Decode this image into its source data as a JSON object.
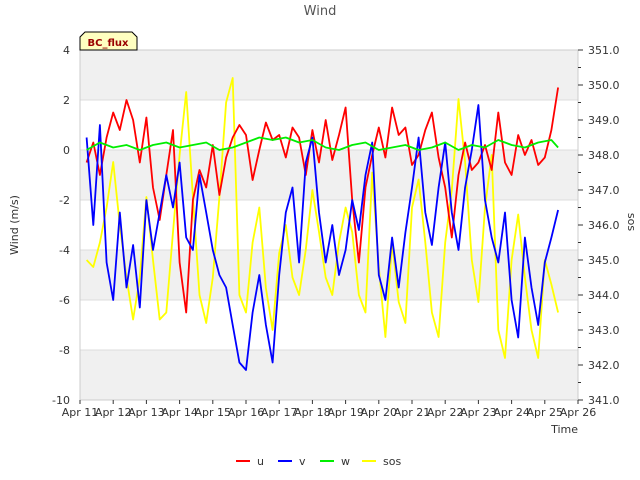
{
  "chart_data": {
    "type": "line",
    "title": "Wind",
    "xlabel": "Time",
    "ylabel_left": "Wind (m/s)",
    "ylabel_right": "sos",
    "xlim": [
      0,
      15
    ],
    "ylim_left": [
      -10,
      4
    ],
    "ylim_right": [
      341,
      351
    ],
    "x_tick_labels": [
      "Apr 11",
      "Apr 12",
      "Apr 13",
      "Apr 14",
      "Apr 15",
      "Apr 16",
      "Apr 17",
      "Apr 18",
      "Apr 19",
      "Apr 20",
      "Apr 21",
      "Apr 22",
      "Apr 23",
      "Apr 24",
      "Apr 25",
      "Apr 26"
    ],
    "y_ticks_left": [
      -10,
      -8,
      -6,
      -4,
      -2,
      0,
      2,
      4
    ],
    "y_ticks_right": [
      "341.0",
      "342.0",
      "343.0",
      "344.0",
      "345.0",
      "346.0",
      "347.0",
      "348.0",
      "349.0",
      "350.0",
      "351.0"
    ],
    "y_ticks_right_values": [
      341,
      342,
      343,
      344,
      345,
      346,
      347,
      348,
      349,
      350,
      351
    ],
    "station_label": "BC_flux",
    "grid": true,
    "legend_position": "bottom-center",
    "series": [
      {
        "name": "u",
        "axis": "left",
        "color": "#ff0000",
        "x": [
          0.2,
          0.4,
          0.6,
          0.8,
          1.0,
          1.2,
          1.4,
          1.6,
          1.8,
          2.0,
          2.2,
          2.4,
          2.6,
          2.8,
          3.0,
          3.2,
          3.4,
          3.6,
          3.8,
          4.0,
          4.2,
          4.4,
          4.6,
          4.8,
          5.0,
          5.2,
          5.4,
          5.6,
          5.8,
          6.0,
          6.2,
          6.4,
          6.6,
          6.8,
          7.0,
          7.2,
          7.4,
          7.6,
          7.8,
          8.0,
          8.2,
          8.4,
          8.6,
          8.8,
          9.0,
          9.2,
          9.4,
          9.6,
          9.8,
          10.0,
          10.2,
          10.4,
          10.6,
          10.8,
          11.0,
          11.2,
          11.4,
          11.6,
          11.8,
          12.0,
          12.2,
          12.4,
          12.6,
          12.8,
          13.0,
          13.2,
          13.4,
          13.6,
          13.8,
          14.0,
          14.2,
          14.4
        ],
        "y": [
          -0.5,
          0.3,
          -1.0,
          0.5,
          1.5,
          0.8,
          2.0,
          1.2,
          -0.5,
          1.3,
          -1.5,
          -2.8,
          -1.0,
          0.8,
          -4.5,
          -6.5,
          -2.0,
          -0.8,
          -1.5,
          0.2,
          -1.8,
          -0.3,
          0.5,
          1.0,
          0.6,
          -1.2,
          0.0,
          1.1,
          0.4,
          0.6,
          -0.3,
          0.9,
          0.5,
          -1.0,
          0.8,
          -0.5,
          1.2,
          -0.4,
          0.6,
          1.7,
          -2.0,
          -4.5,
          -1.5,
          -0.2,
          0.9,
          -0.3,
          1.7,
          0.6,
          0.9,
          -0.6,
          -0.2,
          0.8,
          1.5,
          -0.3,
          -1.5,
          -3.5,
          -1.0,
          0.3,
          -0.8,
          -0.5,
          0.2,
          -0.8,
          1.5,
          -0.5,
          -1.0,
          0.6,
          -0.2,
          0.4,
          -0.6,
          -0.3,
          0.8,
          2.5
        ]
      },
      {
        "name": "v",
        "axis": "left",
        "color": "#0000ff",
        "x": [
          0.2,
          0.4,
          0.6,
          0.8,
          1.0,
          1.2,
          1.4,
          1.6,
          1.8,
          2.0,
          2.2,
          2.4,
          2.6,
          2.8,
          3.0,
          3.2,
          3.4,
          3.6,
          3.8,
          4.0,
          4.2,
          4.4,
          4.6,
          4.8,
          5.0,
          5.2,
          5.4,
          5.6,
          5.8,
          6.0,
          6.2,
          6.4,
          6.6,
          6.8,
          7.0,
          7.2,
          7.4,
          7.6,
          7.8,
          8.0,
          8.2,
          8.4,
          8.6,
          8.8,
          9.0,
          9.2,
          9.4,
          9.6,
          9.8,
          10.0,
          10.2,
          10.4,
          10.6,
          10.8,
          11.0,
          11.2,
          11.4,
          11.6,
          11.8,
          12.0,
          12.2,
          12.4,
          12.6,
          12.8,
          13.0,
          13.2,
          13.4,
          13.6,
          13.8,
          14.0,
          14.2,
          14.4
        ],
        "y": [
          0.5,
          -3.0,
          1.0,
          -4.5,
          -6.0,
          -2.5,
          -5.5,
          -3.8,
          -6.3,
          -2.0,
          -4.0,
          -2.5,
          -1.0,
          -2.3,
          -0.5,
          -3.5,
          -4.0,
          -1.0,
          -2.5,
          -4.0,
          -5.0,
          -5.5,
          -7.0,
          -8.5,
          -8.8,
          -6.5,
          -5.0,
          -7.0,
          -8.5,
          -5.0,
          -2.5,
          -1.5,
          -4.5,
          -0.5,
          0.5,
          -2.5,
          -4.5,
          -3.0,
          -5.0,
          -4.0,
          -2.0,
          -3.2,
          -1.0,
          0.3,
          -5.0,
          -6.0,
          -3.5,
          -5.5,
          -3.3,
          -1.5,
          0.5,
          -2.5,
          -3.8,
          -1.5,
          0.3,
          -2.5,
          -4.0,
          -1.5,
          0.0,
          1.8,
          -2.0,
          -3.5,
          -4.5,
          -2.5,
          -6.0,
          -7.5,
          -3.5,
          -5.5,
          -7.0,
          -4.5,
          -3.5,
          -2.4
        ]
      },
      {
        "name": "w",
        "axis": "left",
        "color": "#00ee00",
        "x": [
          0.2,
          0.6,
          1.0,
          1.4,
          1.8,
          2.2,
          2.6,
          3.0,
          3.4,
          3.8,
          4.2,
          4.6,
          5.0,
          5.4,
          5.8,
          6.2,
          6.6,
          7.0,
          7.4,
          7.8,
          8.2,
          8.6,
          9.0,
          9.4,
          9.8,
          10.2,
          10.6,
          11.0,
          11.4,
          11.8,
          12.2,
          12.6,
          13.0,
          13.4,
          13.8,
          14.2,
          14.4
        ],
        "y": [
          0.0,
          0.3,
          0.1,
          0.2,
          0.0,
          0.2,
          0.3,
          0.1,
          0.2,
          0.3,
          0.0,
          0.1,
          0.3,
          0.5,
          0.4,
          0.5,
          0.3,
          0.4,
          0.1,
          0.0,
          0.2,
          0.3,
          0.0,
          0.1,
          0.2,
          0.0,
          0.1,
          0.3,
          0.0,
          0.2,
          0.1,
          0.4,
          0.2,
          0.1,
          0.3,
          0.4,
          0.1
        ]
      },
      {
        "name": "sos",
        "axis": "right",
        "color": "#ffff00",
        "x": [
          0.2,
          0.4,
          0.6,
          0.8,
          1.0,
          1.2,
          1.4,
          1.6,
          1.8,
          2.0,
          2.2,
          2.4,
          2.6,
          2.8,
          3.0,
          3.2,
          3.4,
          3.6,
          3.8,
          4.0,
          4.2,
          4.4,
          4.6,
          4.8,
          5.0,
          5.2,
          5.4,
          5.6,
          5.8,
          6.0,
          6.2,
          6.4,
          6.6,
          6.8,
          7.0,
          7.2,
          7.4,
          7.6,
          7.8,
          8.0,
          8.2,
          8.4,
          8.6,
          8.8,
          9.0,
          9.2,
          9.4,
          9.6,
          9.8,
          10.0,
          10.2,
          10.4,
          10.6,
          10.8,
          11.0,
          11.2,
          11.4,
          11.6,
          11.8,
          12.0,
          12.2,
          12.4,
          12.6,
          12.8,
          13.0,
          13.2,
          13.4,
          13.6,
          13.8,
          14.0,
          14.2,
          14.4
        ],
        "y": [
          345.0,
          344.8,
          345.5,
          346.5,
          347.8,
          346.0,
          344.5,
          343.3,
          344.5,
          346.8,
          345.0,
          343.3,
          343.5,
          345.8,
          348.0,
          349.8,
          346.8,
          344.0,
          343.2,
          344.5,
          346.8,
          349.5,
          350.2,
          344.0,
          343.5,
          345.5,
          346.5,
          344.2,
          343.0,
          345.2,
          346.0,
          344.5,
          344.0,
          345.3,
          347.0,
          345.8,
          344.5,
          344.0,
          345.5,
          346.5,
          345.8,
          344.0,
          343.5,
          347.5,
          344.8,
          342.8,
          345.5,
          343.8,
          343.2,
          346.5,
          347.3,
          345.5,
          343.5,
          342.8,
          345.5,
          347.0,
          349.6,
          347.8,
          345.0,
          343.8,
          346.5,
          348.0,
          343.0,
          342.2,
          345.0,
          346.3,
          344.5,
          343.0,
          342.2,
          345.0,
          344.3,
          343.5
        ]
      }
    ]
  }
}
